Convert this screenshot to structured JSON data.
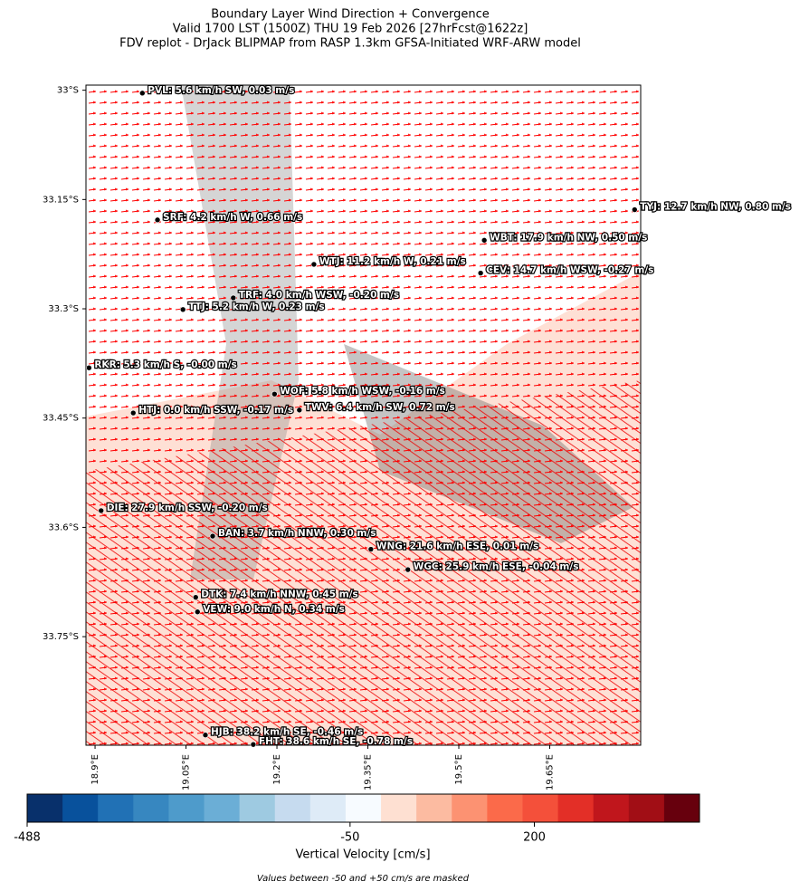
{
  "header": {
    "lines": [
      "Boundary Layer Wind Direction + Convergence",
      "Valid 1700 LST (1500Z) THU 19 Feb 2026 [27hrFcst@1622z]",
      "FDV replot - DrJack BLIPMAP from RASP 1.3km GFSA-Initiated WRF-ARW model"
    ]
  },
  "map": {
    "xlim": [
      18.885,
      19.8
    ],
    "ylim": [
      -33.899,
      -32.993
    ],
    "xticks": [
      {
        "value": 18.9,
        "label": "18.9°E"
      },
      {
        "value": 19.05,
        "label": "19.05°E"
      },
      {
        "value": 19.2,
        "label": "19.2°E"
      },
      {
        "value": 19.35,
        "label": "19.35°E"
      },
      {
        "value": 19.5,
        "label": "19.5°E"
      },
      {
        "value": 19.65,
        "label": "19.65°E"
      }
    ],
    "yticks": [
      {
        "value": -33,
        "label": "33°S"
      },
      {
        "value": -33.15,
        "label": "33.15°S"
      },
      {
        "value": -33.3,
        "label": "33.3°S"
      },
      {
        "value": -33.45,
        "label": "33.45°S"
      },
      {
        "value": -33.6,
        "label": "33.6°S"
      },
      {
        "value": -33.75,
        "label": "33.75°S"
      }
    ],
    "stations": [
      {
        "label": "PVL: 5.6 km/h SW, 0.03 m/s",
        "lon": 18.978,
        "lat": -33.004
      },
      {
        "label": "SRF: 4.2 km/h W, 0.66 m/s",
        "lon": 19.003,
        "lat": -33.178
      },
      {
        "label": "TYJ: 12.7 km/h NW, 0.80 m/s",
        "lon": 19.79,
        "lat": -33.164
      },
      {
        "label": "WBT: 17.9 km/h NW, 0.50 m/s",
        "lon": 19.542,
        "lat": -33.206
      },
      {
        "label": "WTJ: 11.2 km/h W, 0.21 m/s",
        "lon": 19.261,
        "lat": -33.239
      },
      {
        "label": "CEV: 14.7 km/h WSW, -0.27 m/s",
        "lon": 19.536,
        "lat": -33.251
      },
      {
        "label": "TRF: 4.0 km/h WSW, -0.20 m/s",
        "lon": 19.128,
        "lat": -33.285
      },
      {
        "label": "TTJ: 5.2 km/h W, 0.23 m/s",
        "lon": 19.045,
        "lat": -33.301
      },
      {
        "label": "RKR: 5.3 km/h S, -0.00 m/s",
        "lon": 18.89,
        "lat": -33.381
      },
      {
        "label": "WOF: 5.8 km/h WSW, -0.16 m/s",
        "lon": 19.196,
        "lat": -33.417
      },
      {
        "label": "HTJ: 0.0 km/h SSW, -0.17 m/s",
        "lon": 18.963,
        "lat": -33.443
      },
      {
        "label": "TWV: 6.4 km/h SW, 0.72 m/s",
        "lon": 19.237,
        "lat": -33.439
      },
      {
        "label": "DIE: 27.9 km/h SSW, -0.20 m/s",
        "lon": 18.91,
        "lat": -33.577
      },
      {
        "label": "BAN: 3.7 km/h NNW, 0.30 m/s",
        "lon": 19.094,
        "lat": -33.612
      },
      {
        "label": "WNG: 21.6 km/h ESE, 0.01 m/s",
        "lon": 19.355,
        "lat": -33.63
      },
      {
        "label": "WGC: 25.9 km/h ESE, -0.04 m/s",
        "lon": 19.416,
        "lat": -33.658
      },
      {
        "label": "DTK: 7.4 km/h NNW, 0.45 m/s",
        "lon": 19.066,
        "lat": -33.696
      },
      {
        "label": "VEW: 9.0 km/h N, 0.34 m/s",
        "lon": 19.069,
        "lat": -33.716
      },
      {
        "label": "HJB: 38.2 km/h SE, -0.46 m/s",
        "lon": 19.082,
        "lat": -33.885
      },
      {
        "label": "FHT: 38.6 km/h SE, -0.78 m/s",
        "lon": 19.161,
        "lat": -33.898
      }
    ]
  },
  "colorbar": {
    "lim": [
      -488,
      424
    ],
    "ticks": [
      -488,
      -50,
      200
    ],
    "label": "Vertical Velocity [cm/s]",
    "colors": [
      "#08306b",
      "#08519c",
      "#2171b5",
      "#3787c0",
      "#4e9bcb",
      "#6baed6",
      "#9ecae1",
      "#c6dbef",
      "#deebf7",
      "#f7fbff",
      "#fee0d2",
      "#fcbba1",
      "#fc9272",
      "#fb6a4a",
      "#f4503a",
      "#e32f27",
      "#c0161c",
      "#a10e15",
      "#67000d"
    ]
  },
  "note": "Values between -50 and +50 cm/s are masked"
}
